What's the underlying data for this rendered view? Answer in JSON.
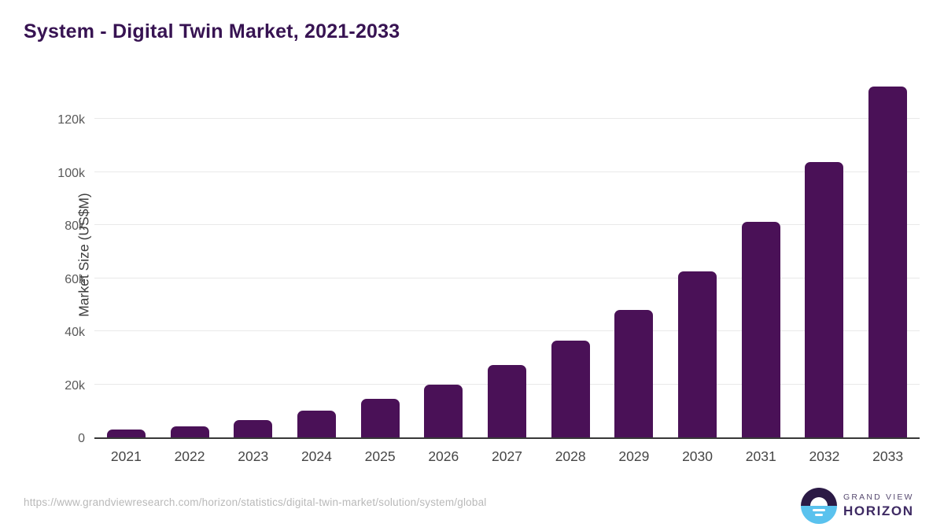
{
  "header": {
    "title": "System - Digital Twin Market, 2021-2033"
  },
  "chart_data": {
    "type": "bar",
    "title": "System - Digital Twin Market, 2021-2033",
    "categories": [
      "2021",
      "2022",
      "2023",
      "2024",
      "2025",
      "2026",
      "2027",
      "2028",
      "2029",
      "2030",
      "2031",
      "2032",
      "2033"
    ],
    "values": [
      3000,
      4300,
      6650,
      10050,
      14400,
      20000,
      27300,
      36350,
      48050,
      62600,
      81300,
      103800,
      132300
    ],
    "xlabel": "",
    "ylabel": "Market Size (US$M)",
    "ylim": [
      0,
      138700
    ],
    "yticks": [
      {
        "value": 0,
        "label": "0"
      },
      {
        "value": 20000,
        "label": "20k"
      },
      {
        "value": 40000,
        "label": "40k"
      },
      {
        "value": 60000,
        "label": "60k"
      },
      {
        "value": 80000,
        "label": "80k"
      },
      {
        "value": 100000,
        "label": "100k"
      },
      {
        "value": 120000,
        "label": "120k"
      }
    ],
    "grid": "horizontal",
    "legend_position": "none",
    "bar_color": "#4a1157"
  },
  "footer": {
    "source_url": "https://www.grandviewresearch.com/horizon/statistics/digital-twin-market/solution/system/global",
    "logo": {
      "line1": "GRAND VIEW",
      "line2": "HORIZON"
    }
  },
  "colors": {
    "title": "#371352",
    "bar": "#4a1157",
    "gridline": "#e9e9e9",
    "axis_line": "#383838",
    "ytick_text": "#595959",
    "xtick_text": "#454545",
    "url_text": "#b9b9b9",
    "logo_dark": "#2b1a45",
    "logo_blue": "#5ac2ee"
  }
}
